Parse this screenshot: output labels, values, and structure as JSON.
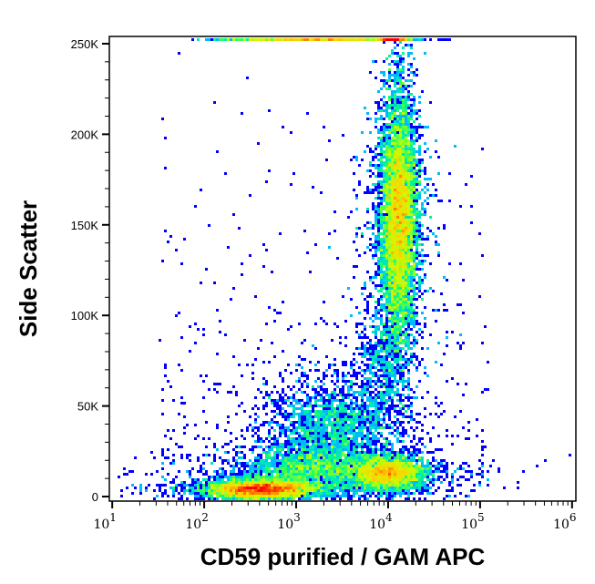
{
  "chart_data": {
    "type": "heatmap",
    "subtype": "flow-cytometry density dot plot",
    "xlabel": "CD59 purified / GAM APC",
    "ylabel": "Side Scatter",
    "x_scale": "log",
    "xlim": [
      9.3,
      1100000
    ],
    "ylim": [
      -2500,
      254000
    ],
    "x_ticks": [
      {
        "value": 10,
        "base": "10",
        "exp": "1"
      },
      {
        "value": 100,
        "base": "10",
        "exp": "2"
      },
      {
        "value": 1000,
        "base": "10",
        "exp": "3"
      },
      {
        "value": 10000,
        "base": "10",
        "exp": "4"
      },
      {
        "value": 100000,
        "base": "10",
        "exp": "5"
      },
      {
        "value": 1000000,
        "base": "10",
        "exp": "6"
      }
    ],
    "y_ticks": [
      {
        "value": 0,
        "label": "0"
      },
      {
        "value": 50000,
        "label": "50K"
      },
      {
        "value": 100000,
        "label": "100K"
      },
      {
        "value": 150000,
        "label": "150K"
      },
      {
        "value": 200000,
        "label": "200K"
      },
      {
        "value": 250000,
        "label": "250K"
      }
    ],
    "colormap": [
      "#0000ff",
      "#00c8ff",
      "#00ff80",
      "#c8ff00",
      "#ffd000",
      "#ff0000"
    ],
    "populations": [
      {
        "x_center": 13000,
        "y_center": 155000,
        "x_log_sd": 0.1,
        "y_sd": 32000,
        "weight": 9000
      },
      {
        "x_center": 400,
        "y_center": 4000,
        "x_log_sd": 0.28,
        "y_sd": 2500,
        "weight": 4500
      },
      {
        "x_center": 10000,
        "y_center": 13000,
        "x_log_sd": 0.2,
        "y_sd": 4500,
        "weight": 3000
      },
      {
        "x_center": 2500,
        "y_center": 40000,
        "x_log_sd": 0.35,
        "y_sd": 12000,
        "weight": 2000
      },
      {
        "x_center": 1500,
        "y_center": 15000,
        "x_log_sd": 0.45,
        "y_sd": 7000,
        "weight": 2500
      },
      {
        "x_center": 9000,
        "y_center": 75000,
        "x_log_sd": 0.15,
        "y_sd": 15000,
        "weight": 700
      }
    ]
  }
}
